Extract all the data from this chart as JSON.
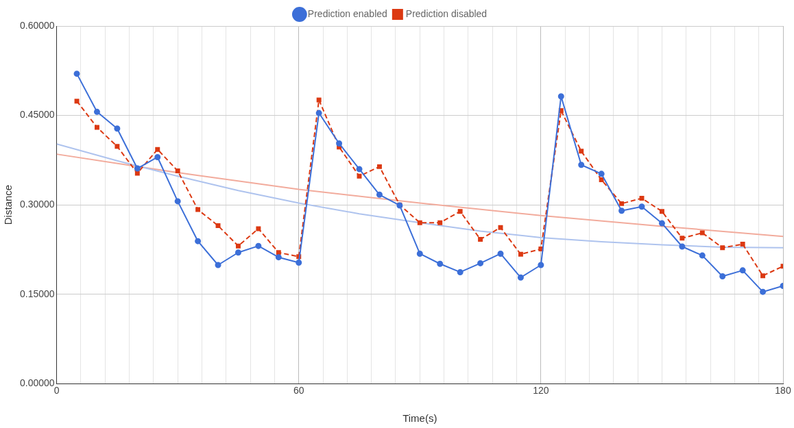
{
  "chart_data": {
    "type": "line",
    "xlabel": "Time(s)",
    "ylabel": "Distance",
    "x": [
      5,
      10,
      15,
      20,
      25,
      30,
      35,
      40,
      45,
      50,
      55,
      60,
      65,
      70,
      75,
      80,
      85,
      90,
      95,
      100,
      105,
      110,
      115,
      120,
      125,
      130,
      135,
      140,
      145,
      150,
      155,
      160,
      165,
      170,
      175,
      180
    ],
    "series": [
      {
        "name": "Prediction enabled",
        "color": "#3c6fd8",
        "marker": "circle",
        "line_style": "solid",
        "values": [
          0.52,
          0.456,
          0.428,
          0.361,
          0.38,
          0.306,
          0.239,
          0.199,
          0.22,
          0.231,
          0.212,
          0.203,
          0.454,
          0.403,
          0.36,
          0.317,
          0.299,
          0.218,
          0.201,
          0.187,
          0.202,
          0.218,
          0.178,
          0.199,
          0.482,
          0.367,
          0.352,
          0.29,
          0.297,
          0.269,
          0.23,
          0.215,
          0.18,
          0.19,
          0.154,
          0.164
        ]
      },
      {
        "name": "Prediction disabled",
        "color": "#dc3912",
        "marker": "square",
        "line_style": "dashed",
        "values": [
          0.474,
          0.43,
          0.398,
          0.353,
          0.393,
          0.357,
          0.292,
          0.265,
          0.231,
          0.26,
          0.22,
          0.213,
          0.476,
          0.397,
          0.348,
          0.364,
          0.3,
          0.27,
          0.27,
          0.289,
          0.242,
          0.262,
          0.217,
          0.226,
          0.458,
          0.39,
          0.342,
          0.302,
          0.311,
          0.289,
          0.244,
          0.253,
          0.228,
          0.234,
          0.181,
          0.197
        ]
      },
      {
        "color": "#aec3ee",
        "marker": "none",
        "line_style": "solid",
        "x": [
          0,
          15,
          30,
          45,
          60,
          75,
          90,
          105,
          120,
          135,
          150,
          165,
          180
        ],
        "values": [
          0.402,
          0.374,
          0.348,
          0.324,
          0.303,
          0.285,
          0.27,
          0.256,
          0.245,
          0.238,
          0.233,
          0.229,
          0.228
        ]
      },
      {
        "color": "#f2ab9c",
        "marker": "none",
        "line_style": "solid",
        "x": [
          0,
          30,
          60,
          90,
          120,
          150,
          180
        ],
        "values": [
          0.385,
          0.354,
          0.326,
          0.303,
          0.282,
          0.264,
          0.247
        ]
      }
    ],
    "xlim": [
      0,
      180
    ],
    "xticks": [
      0,
      {
        "value": 6,
        "label": null
      },
      {
        "value": 12,
        "label": null
      },
      {
        "value": 18,
        "label": null
      },
      {
        "value": 24,
        "label": null
      },
      {
        "value": 30,
        "label": null
      },
      {
        "value": 36,
        "label": null
      },
      {
        "value": 42,
        "label": null
      },
      {
        "value": 48,
        "label": null
      },
      {
        "value": 54,
        "label": null
      },
      60,
      {
        "value": 66,
        "label": null
      },
      {
        "value": 72,
        "label": null
      },
      {
        "value": 78,
        "label": null
      },
      {
        "value": 84,
        "label": null
      },
      {
        "value": 90,
        "label": null
      },
      {
        "value": 96,
        "label": null
      },
      {
        "value": 102,
        "label": null
      },
      {
        "value": 108,
        "label": null
      },
      {
        "value": 114,
        "label": null
      },
      120,
      {
        "value": 126,
        "label": null
      },
      {
        "value": 132,
        "label": null
      },
      {
        "value": 138,
        "label": null
      },
      {
        "value": 144,
        "label": null
      },
      {
        "value": 150,
        "label": null
      },
      {
        "value": 156,
        "label": null
      },
      {
        "value": 162,
        "label": null
      },
      {
        "value": 168,
        "label": null
      },
      {
        "value": 174,
        "label": null
      },
      180
    ],
    "ylim": [
      0,
      0.6
    ],
    "yticks": [
      {
        "value": 0,
        "label": "0.00000"
      },
      {
        "value": 0.15,
        "label": "0.15000"
      },
      {
        "value": 0.3,
        "label": "0.30000"
      },
      {
        "value": 0.45,
        "label": "0.45000"
      },
      {
        "value": 0.6,
        "label": "0.60000"
      }
    ],
    "grid": true,
    "legend": "top"
  }
}
